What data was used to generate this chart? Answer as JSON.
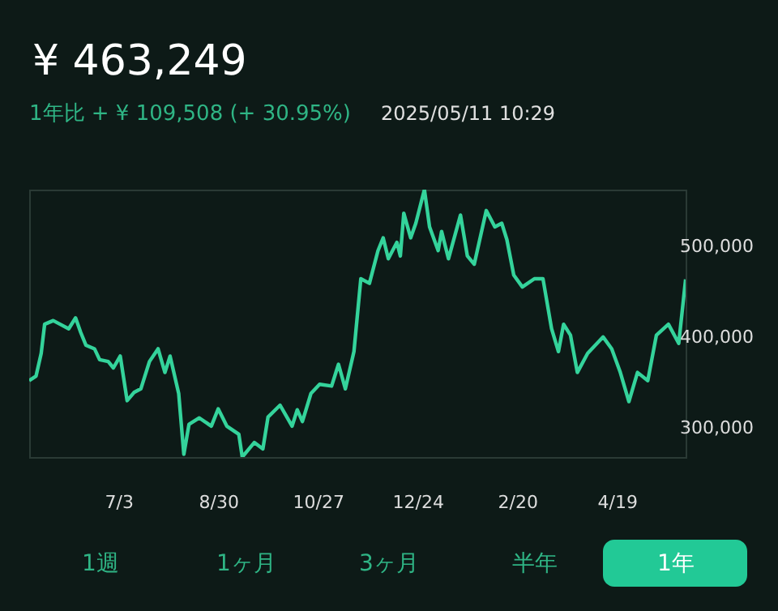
{
  "chart_data": {
    "type": "line",
    "title": "¥ 463,249",
    "subtitle": "1年比 + ¥ 109,508 (+ 30.95%)",
    "annotations": [
      "2025/05/11 10:29",
      "1週",
      "1ヶ月",
      "3ヶ月",
      "半年",
      "1年"
    ],
    "x": [
      "2024-05-12",
      "2024-05-16",
      "2024-05-19",
      "2024-05-21",
      "2024-05-26",
      "2024-05-30",
      "2024-06-04",
      "2024-06-08",
      "2024-06-11",
      "2024-06-14",
      "2024-06-19",
      "2024-06-22",
      "2024-06-27",
      "2024-06-30",
      "2024-07-04",
      "2024-07-08",
      "2024-07-12",
      "2024-07-16",
      "2024-07-21",
      "2024-07-26",
      "2024-07-30",
      "2024-08-02",
      "2024-08-07",
      "2024-08-10",
      "2024-08-13",
      "2024-08-19",
      "2024-08-26",
      "2024-08-30",
      "2024-09-04",
      "2024-09-11",
      "2024-09-13",
      "2024-09-20",
      "2024-09-25",
      "2024-09-28",
      "2024-10-05",
      "2024-10-12",
      "2024-10-15",
      "2024-10-18",
      "2024-10-23",
      "2024-10-28",
      "2024-11-04",
      "2024-11-08",
      "2024-11-12",
      "2024-11-17",
      "2024-11-21",
      "2024-11-26",
      "2024-12-01",
      "2024-12-04",
      "2024-12-07",
      "2024-12-12",
      "2024-12-14",
      "2024-12-16",
      "2024-12-20",
      "2024-12-23",
      "2024-12-28",
      "2024-12-31",
      "2025-01-05",
      "2025-01-07",
      "2025-01-11",
      "2025-01-18",
      "2025-01-22",
      "2025-01-26",
      "2025-02-02",
      "2025-02-07",
      "2025-02-11",
      "2025-02-14",
      "2025-02-18",
      "2025-02-23",
      "2025-03-02",
      "2025-03-07",
      "2025-03-12",
      "2025-03-16",
      "2025-03-19",
      "2025-03-23",
      "2025-03-27",
      "2025-04-02",
      "2025-04-11",
      "2025-04-16",
      "2025-04-21",
      "2025-04-26",
      "2025-05-01",
      "2025-05-07",
      "2025-05-12",
      "2025-05-19",
      "2025-05-25",
      "2025-05-29"
    ],
    "series": [
      {
        "color": "#34d39b",
        "values": [
          352000,
          357000,
          382000,
          414000,
          418000,
          414000,
          409000,
          421000,
          405000,
          391000,
          387000,
          375000,
          373000,
          366000,
          379000,
          330000,
          339000,
          343000,
          373000,
          387000,
          361000,
          379000,
          338000,
          271000,
          304000,
          311000,
          302000,
          321000,
          302000,
          293000,
          268000,
          284000,
          277000,
          312000,
          325000,
          302000,
          320000,
          307000,
          338000,
          348000,
          346000,
          370000,
          343000,
          384000,
          464000,
          459000,
          495000,
          509000,
          486000,
          504000,
          489000,
          536000,
          509000,
          525000,
          562000,
          521000,
          495000,
          516000,
          486000,
          534000,
          489000,
          480000,
          539000,
          521000,
          525000,
          507000,
          468000,
          455000,
          464000,
          464000,
          409000,
          384000,
          414000,
          402000,
          361000,
          382000,
          400000,
          387000,
          361000,
          329000,
          361000,
          352000,
          402000,
          414000,
          393000,
          463249
        ]
      }
    ],
    "xticks": [
      {
        "value": "2024-07-03",
        "label": "7/3"
      },
      {
        "value": "2024-08-30",
        "label": "8/30"
      },
      {
        "value": "2024-10-27",
        "label": "10/27"
      },
      {
        "value": "2024-12-24",
        "label": "12/24"
      },
      {
        "value": "2025-02-20",
        "label": "2/20"
      },
      {
        "value": "2025-04-19",
        "label": "4/19"
      }
    ],
    "yticks": [
      {
        "value": 300000,
        "label": "300,000"
      },
      {
        "value": 400000,
        "label": "400,000"
      },
      {
        "value": 500000,
        "label": "500,000"
      }
    ],
    "xlim": [
      "2024-05-12",
      "2025-05-29"
    ],
    "ylim": [
      268000,
      562000
    ],
    "grid": false,
    "line_style": "solid"
  }
}
